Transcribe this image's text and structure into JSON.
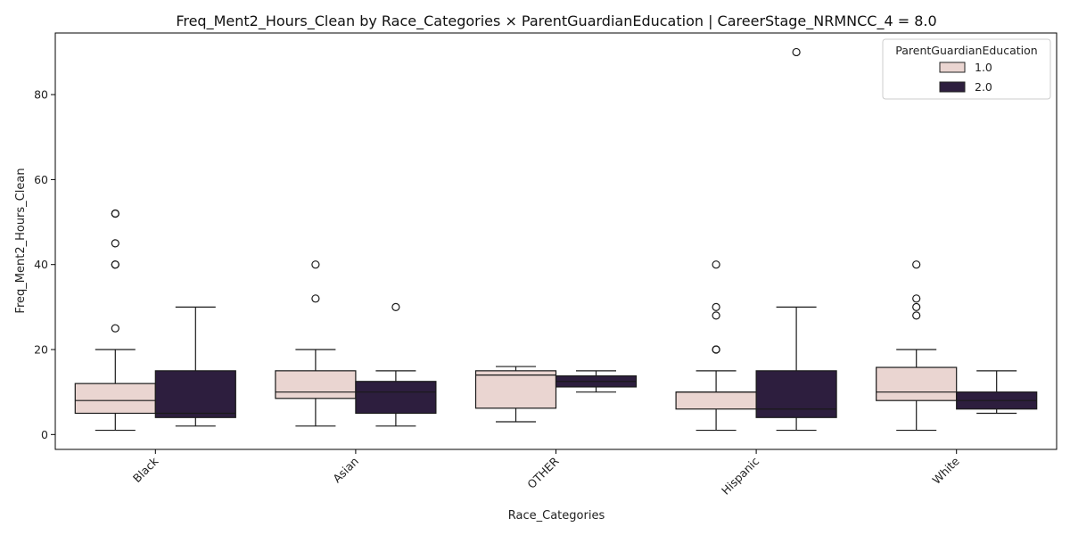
{
  "chart_data": {
    "type": "box",
    "title": "Freq_Ment2_Hours_Clean by Race_Categories × ParentGuardianEducation | CareerStage_NRMNCC_4 = 8.0",
    "xlabel": "Race_Categories",
    "ylabel": "Freq_Ment2_Hours_Clean",
    "ylim": [
      -3.5,
      94.5
    ],
    "yticks": [
      "0",
      "20",
      "40",
      "60",
      "80"
    ],
    "grid": false,
    "legend_title": "ParentGuardianEducation",
    "legend_position": "top-right",
    "categories": [
      "Black",
      "Asian",
      "OTHER",
      "Hispanic",
      "White"
    ],
    "series": [
      {
        "name": "1.0",
        "color": "#ead5d1",
        "boxes": [
          {
            "whisker_low": 1,
            "q1": 5,
            "median": 8,
            "q3": 12,
            "whisker_high": 20,
            "outliers": [
              25,
              40,
              40,
              45,
              52,
              52
            ]
          },
          {
            "whisker_low": 2,
            "q1": 8.5,
            "median": 10,
            "q3": 15,
            "whisker_high": 20,
            "outliers": [
              32,
              40
            ]
          },
          {
            "whisker_low": 3,
            "q1": 6.2,
            "median": 14,
            "q3": 15,
            "whisker_high": 16,
            "outliers": []
          },
          {
            "whisker_low": 1,
            "q1": 6,
            "median": 10,
            "q3": 10,
            "whisker_high": 15,
            "outliers": [
              20,
              20,
              28,
              30,
              40
            ]
          },
          {
            "whisker_low": 1,
            "q1": 8,
            "median": 10,
            "q3": 15.8,
            "whisker_high": 20,
            "outliers": [
              28,
              30,
              32,
              40
            ]
          }
        ]
      },
      {
        "name": "2.0",
        "color": "#2d1e3e",
        "boxes": [
          {
            "whisker_low": 2,
            "q1": 4,
            "median": 5,
            "q3": 15,
            "whisker_high": 30,
            "outliers": []
          },
          {
            "whisker_low": 2,
            "q1": 5,
            "median": 10,
            "q3": 12.5,
            "whisker_high": 15,
            "outliers": [
              30
            ]
          },
          {
            "whisker_low": 10,
            "q1": 11.2,
            "median": 12.5,
            "q3": 13.8,
            "whisker_high": 15,
            "outliers": []
          },
          {
            "whisker_low": 1,
            "q1": 4,
            "median": 6,
            "q3": 15,
            "whisker_high": 30,
            "outliers": [
              90
            ]
          },
          {
            "whisker_low": 5,
            "q1": 6,
            "median": 8,
            "q3": 10,
            "whisker_high": 15,
            "outliers": []
          }
        ]
      }
    ]
  }
}
